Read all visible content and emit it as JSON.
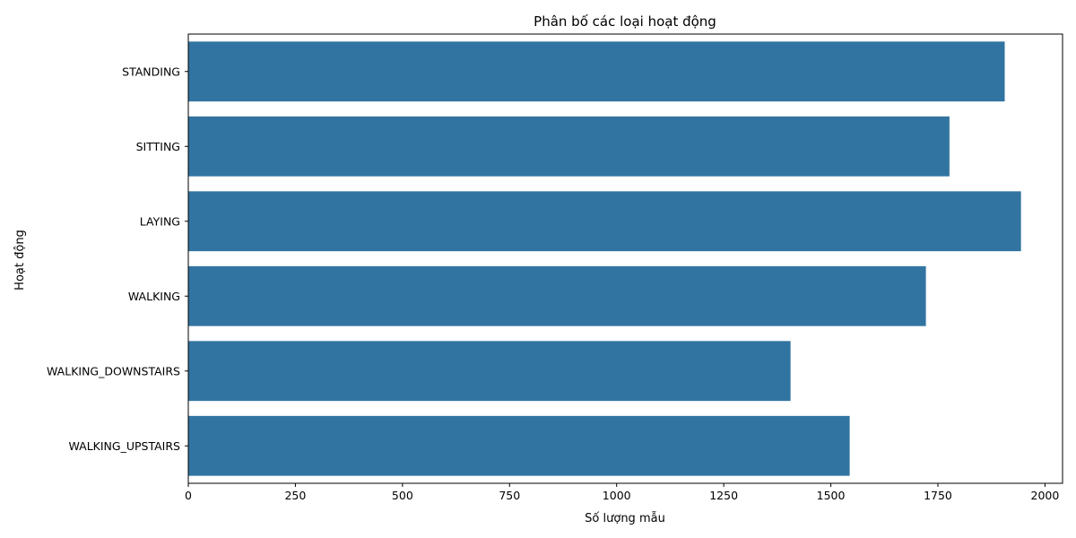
{
  "chart_data": {
    "type": "bar",
    "orientation": "horizontal",
    "title": "Phân bố các loại hoạt động",
    "xlabel": "Số lượng mẫu",
    "ylabel": "Hoạt động",
    "categories": [
      "STANDING",
      "SITTING",
      "LAYING",
      "WALKING",
      "WALKING_DOWNSTAIRS",
      "WALKING_UPSTAIRS"
    ],
    "values": [
      1906,
      1777,
      1944,
      1722,
      1406,
      1544
    ],
    "xlim": [
      0,
      2041
    ],
    "xticks": [
      0,
      250,
      500,
      750,
      1000,
      1250,
      1500,
      1750,
      2000
    ],
    "grid": false,
    "bar_color": "#3274a1"
  }
}
